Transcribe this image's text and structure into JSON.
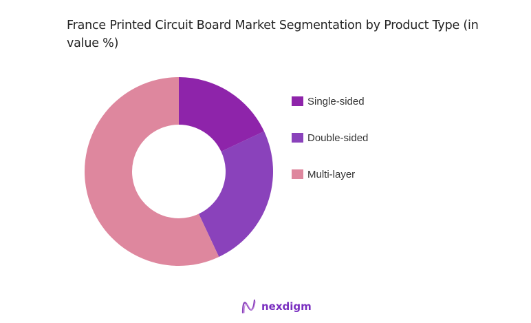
{
  "title": "France Printed Circuit Board Market Segmentation by Product Type (in value %)",
  "chart_data": {
    "type": "pie",
    "subtype": "donut",
    "title": "France Printed Circuit Board Market Segmentation by Product Type (in value %)",
    "categories": [
      "Single-sided",
      "Double-sided",
      "Multi-layer"
    ],
    "values": [
      18,
      25,
      57
    ],
    "colors": [
      "#8e24aa",
      "#8a42bb",
      "#de879e"
    ],
    "legend_position": "right",
    "start_angle": "top, clockwise"
  },
  "legend": {
    "items": [
      {
        "label": "Single-sided",
        "color": "#8e24aa"
      },
      {
        "label": "Double-sided",
        "color": "#8a42bb"
      },
      {
        "label": "Multi-layer",
        "color": "#de879e"
      }
    ]
  },
  "brand": {
    "name": "nexdigm"
  }
}
